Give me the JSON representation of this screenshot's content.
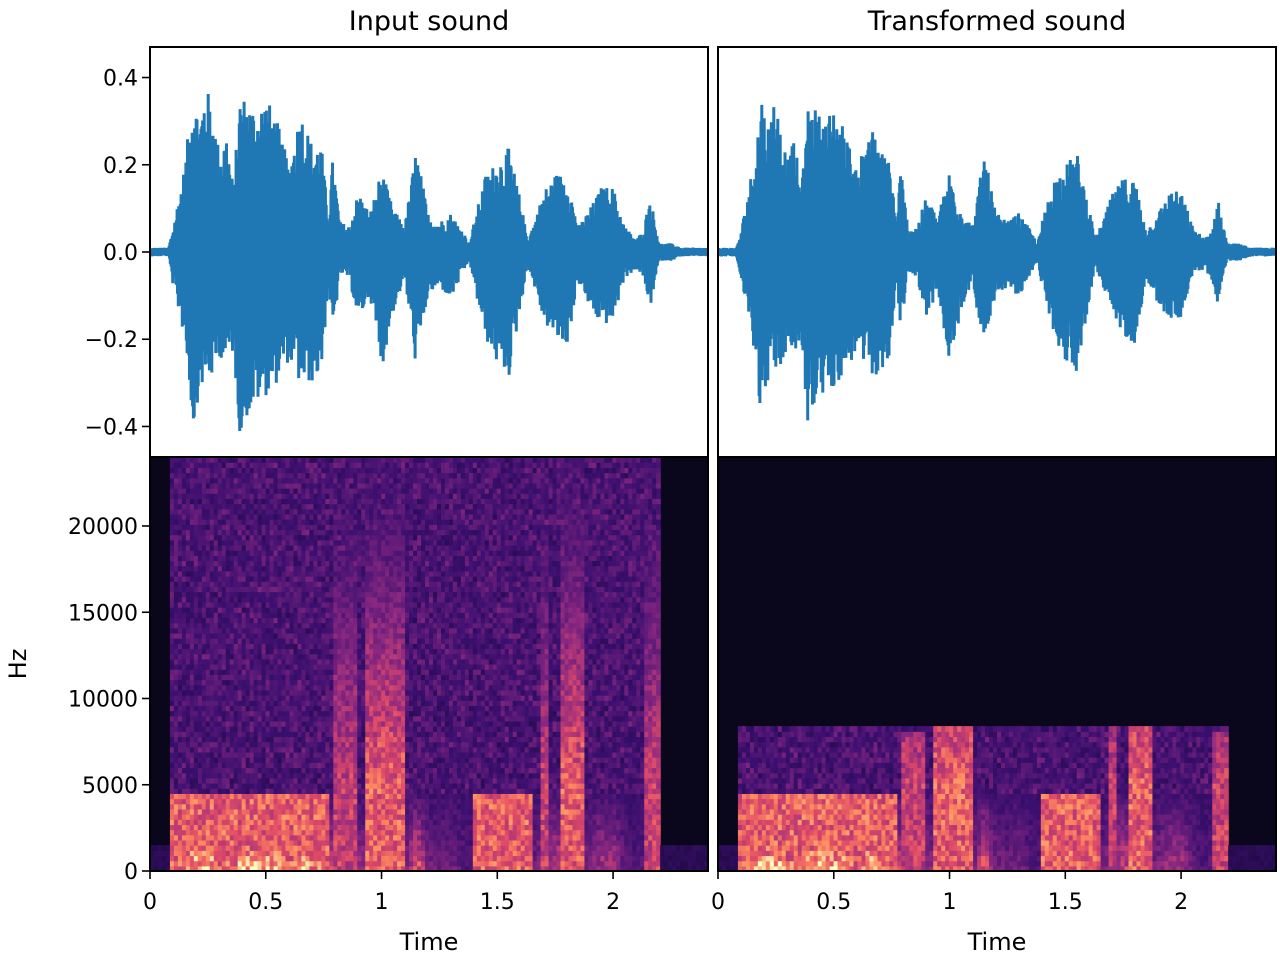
{
  "chart_data": [
    {
      "type": "line",
      "panel": "top-left",
      "title": "Input sound",
      "ylabel": "",
      "xlabel": "",
      "xlim": [
        0,
        2.41
      ],
      "ylim": [
        -0.47,
        0.47
      ],
      "y_ticks": [
        0.4,
        0.2,
        0.0,
        -0.2,
        -0.4
      ],
      "y_tick_labels": [
        "0.4",
        "0.2",
        "0.0",
        "−0.2",
        "−0.4"
      ],
      "envelope": {
        "t": [
          0.0,
          0.08,
          0.1,
          0.15,
          0.19,
          0.21,
          0.24,
          0.27,
          0.3,
          0.33,
          0.36,
          0.39,
          0.42,
          0.46,
          0.5,
          0.55,
          0.6,
          0.65,
          0.7,
          0.74,
          0.77,
          0.79,
          0.82,
          0.86,
          0.9,
          0.95,
          1.0,
          1.05,
          1.1,
          1.15,
          1.2,
          1.25,
          1.3,
          1.35,
          1.38,
          1.4,
          1.45,
          1.5,
          1.55,
          1.6,
          1.63,
          1.66,
          1.7,
          1.75,
          1.8,
          1.85,
          1.9,
          1.95,
          2.0,
          2.05,
          2.1,
          2.13,
          2.16,
          2.2,
          2.25,
          2.3,
          2.41
        ],
        "max": [
          0.01,
          0.01,
          0.06,
          0.2,
          0.4,
          0.3,
          0.39,
          0.33,
          0.23,
          0.28,
          0.15,
          0.37,
          0.35,
          0.33,
          0.36,
          0.3,
          0.2,
          0.33,
          0.25,
          0.25,
          0.08,
          0.22,
          0.07,
          0.06,
          0.14,
          0.09,
          0.19,
          0.1,
          0.06,
          0.24,
          0.09,
          0.07,
          0.09,
          0.05,
          0.02,
          0.07,
          0.18,
          0.21,
          0.24,
          0.12,
          0.03,
          0.07,
          0.14,
          0.18,
          0.18,
          0.06,
          0.1,
          0.15,
          0.15,
          0.06,
          0.03,
          0.05,
          0.13,
          0.02,
          0.02,
          0.01,
          0.01
        ],
        "min": [
          -0.01,
          -0.01,
          -0.08,
          -0.2,
          -0.42,
          -0.32,
          -0.3,
          -0.29,
          -0.24,
          -0.26,
          -0.23,
          -0.43,
          -0.38,
          -0.35,
          -0.33,
          -0.3,
          -0.25,
          -0.31,
          -0.3,
          -0.28,
          -0.08,
          -0.2,
          -0.05,
          -0.06,
          -0.16,
          -0.1,
          -0.27,
          -0.14,
          -0.06,
          -0.27,
          -0.1,
          -0.08,
          -0.11,
          -0.05,
          -0.02,
          -0.08,
          -0.2,
          -0.26,
          -0.29,
          -0.13,
          -0.03,
          -0.08,
          -0.16,
          -0.2,
          -0.22,
          -0.07,
          -0.13,
          -0.17,
          -0.16,
          -0.06,
          -0.04,
          -0.06,
          -0.13,
          -0.02,
          -0.02,
          -0.01,
          -0.01
        ]
      },
      "color": "#1f77b4"
    },
    {
      "type": "line",
      "panel": "top-right",
      "title": "Transformed sound",
      "xlim": [
        0,
        2.41
      ],
      "ylim": [
        -0.47,
        0.47
      ],
      "envelope": {
        "t": [
          0.0,
          0.08,
          0.1,
          0.15,
          0.19,
          0.21,
          0.24,
          0.27,
          0.3,
          0.33,
          0.36,
          0.39,
          0.42,
          0.46,
          0.5,
          0.55,
          0.6,
          0.65,
          0.7,
          0.74,
          0.77,
          0.79,
          0.82,
          0.86,
          0.9,
          0.95,
          1.0,
          1.05,
          1.1,
          1.15,
          1.2,
          1.25,
          1.3,
          1.35,
          1.38,
          1.4,
          1.45,
          1.5,
          1.55,
          1.6,
          1.63,
          1.66,
          1.7,
          1.75,
          1.8,
          1.85,
          1.9,
          1.95,
          2.0,
          2.05,
          2.1,
          2.13,
          2.16,
          2.2,
          2.25,
          2.3,
          2.41
        ],
        "max": [
          0.01,
          0.01,
          0.05,
          0.2,
          0.37,
          0.28,
          0.36,
          0.3,
          0.21,
          0.26,
          0.14,
          0.34,
          0.33,
          0.3,
          0.34,
          0.28,
          0.18,
          0.31,
          0.23,
          0.23,
          0.07,
          0.2,
          0.06,
          0.06,
          0.13,
          0.08,
          0.19,
          0.1,
          0.06,
          0.23,
          0.09,
          0.07,
          0.09,
          0.05,
          0.02,
          0.07,
          0.17,
          0.2,
          0.23,
          0.11,
          0.03,
          0.07,
          0.13,
          0.17,
          0.17,
          0.05,
          0.09,
          0.14,
          0.14,
          0.06,
          0.03,
          0.05,
          0.12,
          0.02,
          0.02,
          0.01,
          0.01
        ],
        "min": [
          -0.01,
          -0.01,
          -0.07,
          -0.2,
          -0.4,
          -0.3,
          -0.28,
          -0.27,
          -0.22,
          -0.24,
          -0.21,
          -0.41,
          -0.36,
          -0.33,
          -0.31,
          -0.28,
          -0.23,
          -0.29,
          -0.28,
          -0.26,
          -0.07,
          -0.18,
          -0.05,
          -0.06,
          -0.15,
          -0.09,
          -0.27,
          -0.14,
          -0.06,
          -0.26,
          -0.1,
          -0.08,
          -0.11,
          -0.05,
          -0.02,
          -0.08,
          -0.19,
          -0.25,
          -0.28,
          -0.12,
          -0.03,
          -0.08,
          -0.15,
          -0.19,
          -0.21,
          -0.06,
          -0.12,
          -0.16,
          -0.15,
          -0.05,
          -0.04,
          -0.06,
          -0.12,
          -0.02,
          -0.02,
          -0.01,
          -0.01
        ]
      },
      "color": "#1f77b4"
    },
    {
      "type": "heatmap",
      "panel": "bottom-left",
      "xlabel": "Time",
      "ylabel": "Hz",
      "xlim": [
        0,
        2.41
      ],
      "ylim": [
        0,
        24000
      ],
      "x_ticks": [
        0,
        0.5,
        1,
        1.5,
        2
      ],
      "x_tick_labels": [
        "0",
        "0.5",
        "1",
        "1.5",
        "2"
      ],
      "y_ticks": [
        0,
        5000,
        10000,
        15000,
        20000
      ],
      "y_tick_labels": [
        "0",
        "5000",
        "10000",
        "15000",
        "20000"
      ],
      "colormap": "magma",
      "speech_bands": [
        {
          "t_start": 0.08,
          "t_end": 0.77,
          "f_top": 4500,
          "level": "high"
        },
        {
          "t_start": 0.79,
          "t_end": 0.9,
          "f_top": 24000,
          "level": "medium"
        },
        {
          "t_start": 0.93,
          "t_end": 1.1,
          "f_top": 24000,
          "level": "high"
        },
        {
          "t_start": 1.4,
          "t_end": 1.66,
          "f_top": 4500,
          "level": "high"
        },
        {
          "t_start": 1.68,
          "t_end": 1.73,
          "f_top": 24000,
          "level": "medium"
        },
        {
          "t_start": 1.77,
          "t_end": 1.87,
          "f_top": 24000,
          "level": "high"
        },
        {
          "t_start": 2.14,
          "t_end": 2.2,
          "f_top": 24000,
          "level": "medium"
        }
      ]
    },
    {
      "type": "heatmap",
      "panel": "bottom-right",
      "xlabel": "Time",
      "xlim": [
        0,
        2.41
      ],
      "ylim": [
        0,
        24000
      ],
      "x_ticks": [
        0,
        0.5,
        1,
        1.5,
        2
      ],
      "x_tick_labels": [
        "0",
        "0.5",
        "1",
        "1.5",
        "2"
      ],
      "colormap": "magma",
      "max_frequency": 8500,
      "speech_bands": [
        {
          "t_start": 0.08,
          "t_end": 0.77,
          "f_top": 4500,
          "level": "high"
        },
        {
          "t_start": 0.79,
          "t_end": 0.9,
          "f_top": 8000,
          "level": "medium"
        },
        {
          "t_start": 0.93,
          "t_end": 1.1,
          "f_top": 8500,
          "level": "high"
        },
        {
          "t_start": 1.4,
          "t_end": 1.66,
          "f_top": 4500,
          "level": "high"
        },
        {
          "t_start": 1.68,
          "t_end": 1.73,
          "f_top": 8500,
          "level": "medium"
        },
        {
          "t_start": 1.77,
          "t_end": 1.87,
          "f_top": 8500,
          "level": "high"
        },
        {
          "t_start": 2.14,
          "t_end": 2.2,
          "f_top": 8000,
          "level": "medium"
        }
      ]
    }
  ]
}
